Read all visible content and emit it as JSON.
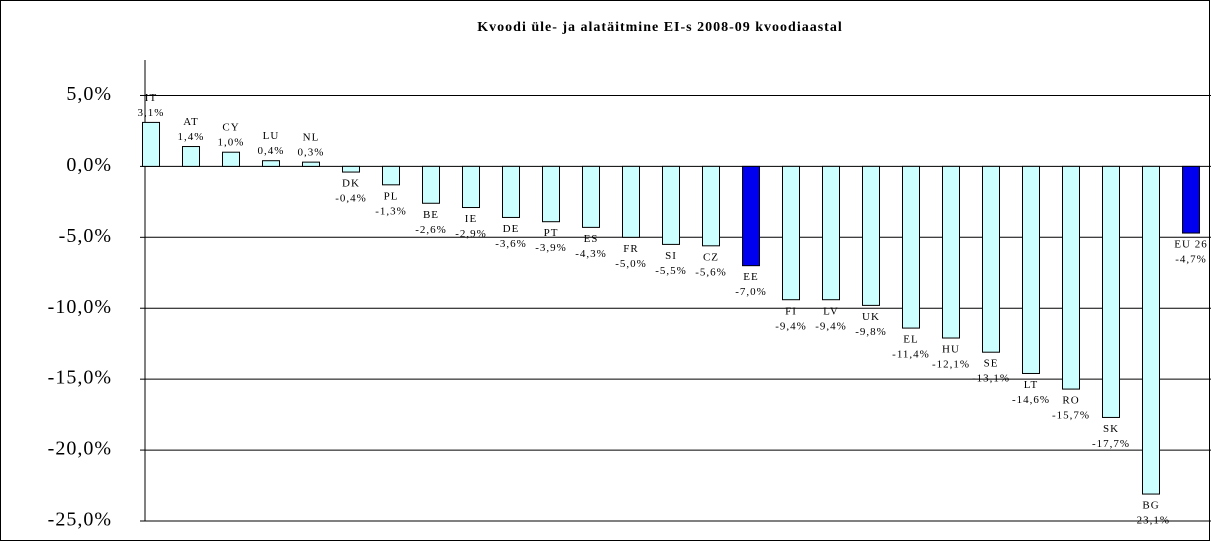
{
  "chart_data": {
    "type": "bar",
    "title": "Kvoodi üle- ja alatäitmine EI-s 2008-09 kvoodiaastal",
    "categories": [
      "IT",
      "AT",
      "CY",
      "LU",
      "NL",
      "DK",
      "PL",
      "BE",
      "IE",
      "DE",
      "PT",
      "ES",
      "FR",
      "SI",
      "CZ",
      "EE",
      "FI",
      "LV",
      "UK",
      "EL",
      "HU",
      "SE",
      "LT",
      "RO",
      "SK",
      "BG",
      "EU 26"
    ],
    "values": [
      3.1,
      1.4,
      1.0,
      0.4,
      0.3,
      -0.4,
      -1.3,
      -2.6,
      -2.9,
      -3.6,
      -3.9,
      -4.3,
      -5.0,
      -5.5,
      -5.6,
      -7.0,
      -9.4,
      -9.4,
      -9.8,
      -11.4,
      -12.1,
      -13.1,
      -14.6,
      -15.7,
      -17.7,
      -23.1,
      -4.7
    ],
    "value_labels": [
      "3,1%",
      "1,4%",
      "1,0%",
      "0,4%",
      "0,3%",
      "-0,4%",
      "-1,3%",
      "-2,6%",
      "-2,9%",
      "-3,6%",
      "-3,9%",
      "-4,3%",
      "-5,0%",
      "-5,5%",
      "-5,6%",
      "-7,0%",
      "-9,4%",
      "-9,4%",
      "-9,8%",
      "-11,4%",
      "-12,1%",
      "-13,1%",
      "-14,6%",
      "-15,7%",
      "-17,7%",
      "-23,1%",
      "-4,7%"
    ],
    "colors": [
      "#ccffff",
      "#ccffff",
      "#ccffff",
      "#ccffff",
      "#ccffff",
      "#ccffff",
      "#ccffff",
      "#ccffff",
      "#ccffff",
      "#ccffff",
      "#ccffff",
      "#ccffff",
      "#ccffff",
      "#ccffff",
      "#ccffff",
      "#0000ee",
      "#ccffff",
      "#ccffff",
      "#ccffff",
      "#ccffff",
      "#ccffff",
      "#ccffff",
      "#ccffff",
      "#ccffff",
      "#ccffff",
      "#ccffff",
      "#0000ee"
    ],
    "ylim": [
      -25,
      7.5
    ],
    "yticks": [
      {
        "value": 5,
        "label": "5,0%"
      },
      {
        "value": 0,
        "label": "0,0%"
      },
      {
        "value": -5,
        "label": "-5,0%"
      },
      {
        "value": -10,
        "label": "-10,0%"
      },
      {
        "value": -15,
        "label": "-15,0%"
      },
      {
        "value": -20,
        "label": "-20,0%"
      },
      {
        "value": -25,
        "label": "-25,0%"
      }
    ],
    "grid": true
  }
}
